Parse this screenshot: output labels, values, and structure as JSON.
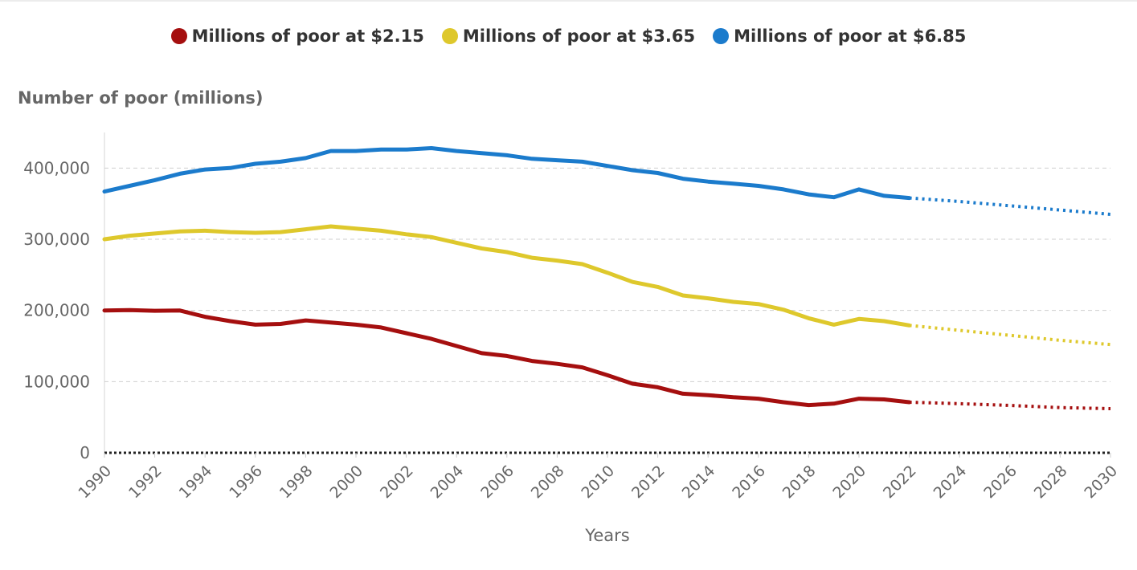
{
  "chart_data": {
    "type": "line",
    "ylabel": "Number of poor (millions)",
    "xlabel": "Years",
    "xlim": [
      1990,
      2030
    ],
    "ylim": [
      0,
      450000
    ],
    "y_ticks": [
      0,
      100000,
      200000,
      300000,
      400000
    ],
    "y_tick_labels": [
      "0",
      "100,000",
      "200,000",
      "300,000",
      "400,000"
    ],
    "x_ticks": [
      1990,
      1992,
      1994,
      1996,
      1998,
      2000,
      2002,
      2004,
      2006,
      2008,
      2010,
      2012,
      2014,
      2016,
      2018,
      2020,
      2022,
      2024,
      2026,
      2028,
      2030
    ],
    "x_tick_labels": [
      "1990",
      "1992",
      "1994",
      "1996",
      "1998",
      "2000",
      "2002",
      "2004",
      "2006",
      "2008",
      "2010",
      "2012",
      "2014",
      "2016",
      "2018",
      "2020",
      "2022",
      "2024",
      "2026",
      "2028",
      "2030"
    ],
    "grid": "horizontal dashed",
    "legend_position": "top-center",
    "series": [
      {
        "name": "Millions of poor at $2.15",
        "color": "#a50f0f",
        "x": [
          1990,
          1991,
          1992,
          1993,
          1994,
          1995,
          1996,
          1997,
          1998,
          1999,
          2000,
          2001,
          2002,
          2003,
          2004,
          2005,
          2006,
          2007,
          2008,
          2009,
          2010,
          2011,
          2012,
          2013,
          2014,
          2015,
          2016,
          2017,
          2018,
          2019,
          2020,
          2021,
          2022
        ],
        "values": [
          200000,
          200500,
          199500,
          199800,
          191000,
          185000,
          180000,
          181000,
          186000,
          183000,
          180000,
          176000,
          168000,
          160000,
          150000,
          140000,
          136000,
          129000,
          125000,
          120000,
          109000,
          97000,
          92000,
          83000,
          81000,
          78000,
          76000,
          71000,
          67000,
          69000,
          76000,
          75000,
          71000
        ],
        "projection_x": [
          2022,
          2024,
          2026,
          2028,
          2030
        ],
        "projection_values": [
          71000,
          69000,
          66500,
          63500,
          62000
        ]
      },
      {
        "name": "Millions of poor at $3.65",
        "color": "#dec82c",
        "x": [
          1990,
          1991,
          1992,
          1993,
          1994,
          1995,
          1996,
          1997,
          1998,
          1999,
          2000,
          2001,
          2002,
          2003,
          2004,
          2005,
          2006,
          2007,
          2008,
          2009,
          2010,
          2011,
          2012,
          2013,
          2014,
          2015,
          2016,
          2017,
          2018,
          2019,
          2020,
          2021,
          2022
        ],
        "values": [
          300000,
          305000,
          308000,
          311000,
          312000,
          310000,
          309000,
          310000,
          314000,
          318000,
          315000,
          312000,
          307000,
          303000,
          295000,
          287000,
          282000,
          274000,
          270000,
          265000,
          253000,
          240000,
          233000,
          221000,
          217000,
          212000,
          209000,
          201000,
          189000,
          180000,
          188000,
          185000,
          179000
        ],
        "projection_x": [
          2022,
          2024,
          2026,
          2028,
          2030
        ],
        "projection_values": [
          179000,
          172000,
          165000,
          158000,
          152000
        ]
      },
      {
        "name": "Millions of poor at $6.85",
        "color": "#1b7bcc",
        "x": [
          1990,
          1991,
          1992,
          1993,
          1994,
          1995,
          1996,
          1997,
          1998,
          1999,
          2000,
          2001,
          2002,
          2003,
          2004,
          2005,
          2006,
          2007,
          2008,
          2009,
          2010,
          2011,
          2012,
          2013,
          2014,
          2015,
          2016,
          2017,
          2018,
          2019,
          2020,
          2021,
          2022
        ],
        "values": [
          367000,
          375000,
          383000,
          392000,
          398000,
          400000,
          406000,
          409000,
          414000,
          424000,
          424000,
          426000,
          426000,
          428000,
          424000,
          421000,
          418000,
          413000,
          411000,
          409000,
          403000,
          397000,
          393000,
          385000,
          381000,
          378000,
          375000,
          370000,
          363000,
          359000,
          370000,
          361000,
          358000
        ],
        "projection_x": [
          2022,
          2024,
          2026,
          2028,
          2030
        ],
        "projection_values": [
          358000,
          353000,
          347000,
          341000,
          335000
        ]
      }
    ]
  }
}
